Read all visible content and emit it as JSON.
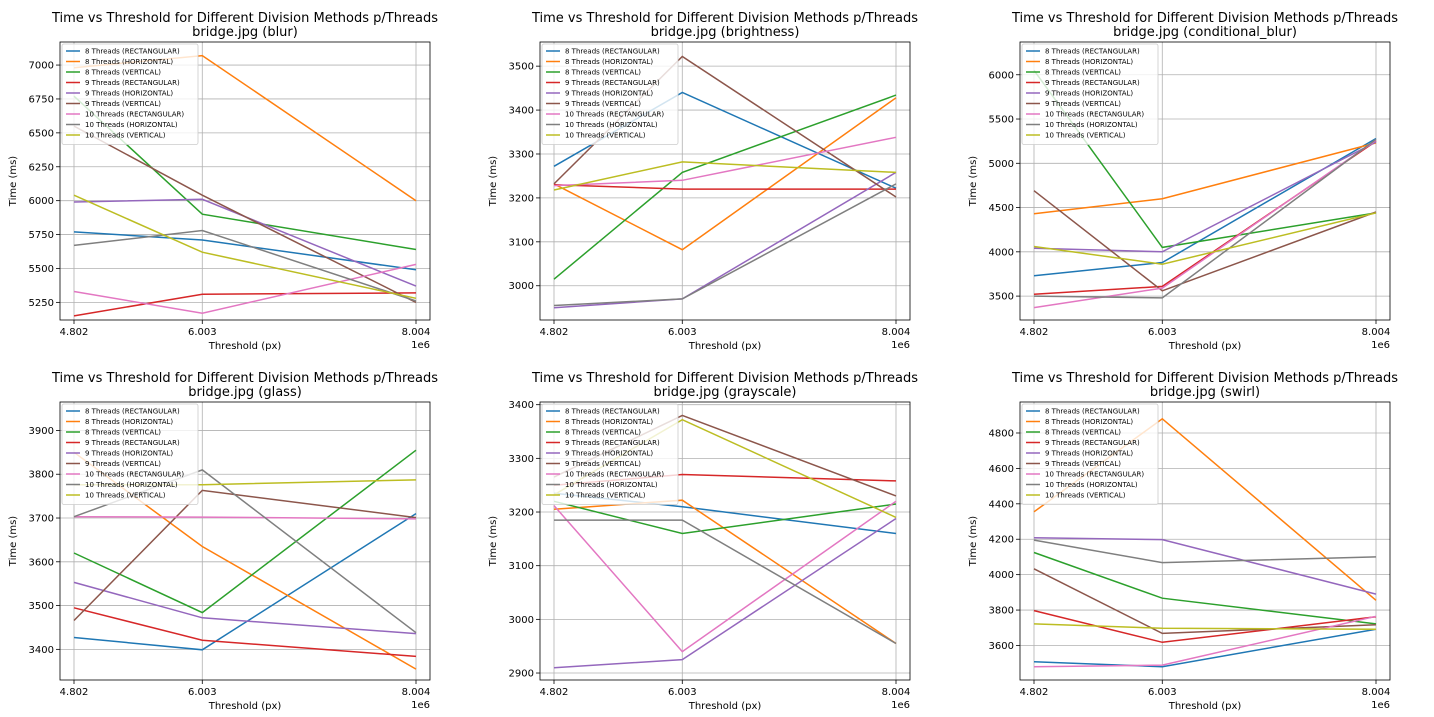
{
  "figure": {
    "x_offset_label": "1e6"
  },
  "series_colors": [
    "#1f77b4",
    "#ff7f0e",
    "#2ca02c",
    "#d62728",
    "#9467bd",
    "#8c564b",
    "#e377c2",
    "#7f7f7f",
    "#bcbd22"
  ],
  "chart_data": [
    {
      "type": "line",
      "title": "Time vs Threshold for Different Division Methods p/Threads",
      "subtitle": "bridge.jpg (blur)",
      "xlabel": "Threshold (px)",
      "ylabel": "Time (ms)",
      "x": [
        4.802,
        6.003,
        8.004
      ],
      "x_tick_labels": [
        "4.802",
        "6.003",
        "8.004"
      ],
      "x_offset": "1e6",
      "ylim": [
        5120,
        7170
      ],
      "y_ticks": [
        5250,
        5500,
        5750,
        6000,
        6250,
        6500,
        6750,
        7000
      ],
      "grid": true,
      "legend_position": "top-left",
      "series": [
        {
          "name": "8 Threads (RECTANGULAR)",
          "values": [
            5770,
            5710,
            5490
          ]
        },
        {
          "name": "8 Threads (HORIZONTAL)",
          "values": [
            6980,
            7070,
            6000
          ]
        },
        {
          "name": "8 Threads (VERTICAL)",
          "values": [
            6770,
            5900,
            5640
          ]
        },
        {
          "name": "9 Threads (RECTANGULAR)",
          "values": [
            5150,
            5310,
            5320
          ]
        },
        {
          "name": "9 Threads (HORIZONTAL)",
          "values": [
            5990,
            6010,
            5370
          ]
        },
        {
          "name": "9 Threads (VERTICAL)",
          "values": [
            6550,
            6040,
            5250
          ]
        },
        {
          "name": "10 Threads (RECTANGULAR)",
          "values": [
            5330,
            5170,
            5530
          ]
        },
        {
          "name": "10 Threads (HORIZONTAL)",
          "values": [
            5670,
            5780,
            5260
          ]
        },
        {
          "name": "10 Threads (VERTICAL)",
          "values": [
            6040,
            5620,
            5280
          ]
        }
      ]
    },
    {
      "type": "line",
      "title": "Time vs Threshold for Different Division Methods p/Threads",
      "subtitle": "bridge.jpg (brightness)",
      "xlabel": "Threshold (px)",
      "ylabel": "Time (ms)",
      "x": [
        4.802,
        6.003,
        8.004
      ],
      "x_tick_labels": [
        "4.802",
        "6.003",
        "8.004"
      ],
      "x_offset": "1e6",
      "ylim": [
        2922,
        3555
      ],
      "y_ticks": [
        3000,
        3100,
        3200,
        3300,
        3400,
        3500
      ],
      "grid": true,
      "legend_position": "top-left",
      "series": [
        {
          "name": "8 Threads (RECTANGULAR)",
          "values": [
            3272,
            3440,
            3222
          ]
        },
        {
          "name": "8 Threads (HORIZONTAL)",
          "values": [
            3232,
            3082,
            3428
          ]
        },
        {
          "name": "8 Threads (VERTICAL)",
          "values": [
            3015,
            3258,
            3434
          ]
        },
        {
          "name": "9 Threads (RECTANGULAR)",
          "values": [
            3230,
            3220,
            3220
          ]
        },
        {
          "name": "9 Threads (HORIZONTAL)",
          "values": [
            2950,
            2970,
            3258
          ]
        },
        {
          "name": "9 Threads (VERTICAL)",
          "values": [
            3232,
            3522,
            3202
          ]
        },
        {
          "name": "10 Threads (RECTANGULAR)",
          "values": [
            3228,
            3240,
            3338
          ]
        },
        {
          "name": "10 Threads (HORIZONTAL)",
          "values": [
            2955,
            2970,
            3232
          ]
        },
        {
          "name": "10 Threads (VERTICAL)",
          "values": [
            3218,
            3282,
            3258
          ]
        }
      ]
    },
    {
      "type": "line",
      "title": "Time vs Threshold for Different Division Methods p/Threads",
      "subtitle": "bridge.jpg (conditional_blur)",
      "xlabel": "Threshold (px)",
      "ylabel": "Time (ms)",
      "x": [
        4.802,
        6.003,
        8.004
      ],
      "x_tick_labels": [
        "4.802",
        "6.003",
        "8.004"
      ],
      "x_offset": "1e6",
      "ylim": [
        3230,
        6370
      ],
      "y_ticks": [
        3500,
        4000,
        4500,
        5000,
        5500,
        6000
      ],
      "grid": true,
      "legend_position": "top-left",
      "series": [
        {
          "name": "8 Threads (RECTANGULAR)",
          "values": [
            3730,
            3880,
            5280
          ]
        },
        {
          "name": "8 Threads (HORIZONTAL)",
          "values": [
            4430,
            4600,
            5230
          ]
        },
        {
          "name": "8 Threads (VERTICAL)",
          "values": [
            6050,
            4050,
            4440
          ]
        },
        {
          "name": "9 Threads (RECTANGULAR)",
          "values": [
            3520,
            3610,
            5250
          ]
        },
        {
          "name": "9 Threads (HORIZONTAL)",
          "values": [
            4040,
            4000,
            5240
          ]
        },
        {
          "name": "9 Threads (VERTICAL)",
          "values": [
            4690,
            3560,
            4450
          ]
        },
        {
          "name": "10 Threads (RECTANGULAR)",
          "values": [
            3370,
            3590,
            5260
          ]
        },
        {
          "name": "10 Threads (HORIZONTAL)",
          "values": [
            3500,
            3480,
            5270
          ]
        },
        {
          "name": "10 Threads (VERTICAL)",
          "values": [
            4060,
            3860,
            4440
          ]
        }
      ]
    },
    {
      "type": "line",
      "title": "Time vs Threshold for Different Division Methods p/Threads",
      "subtitle": "bridge.jpg (glass)",
      "xlabel": "Threshold (px)",
      "ylabel": "Time (ms)",
      "x": [
        4.802,
        6.003,
        8.004
      ],
      "x_tick_labels": [
        "4.802",
        "6.003",
        "8.004"
      ],
      "x_offset": "1e6",
      "ylim": [
        3330,
        3965
      ],
      "y_ticks": [
        3400,
        3500,
        3600,
        3700,
        3800,
        3900
      ],
      "grid": true,
      "legend_position": "top-left",
      "series": [
        {
          "name": "8 Threads (RECTANGULAR)",
          "values": [
            3427,
            3399,
            3710
          ]
        },
        {
          "name": "8 Threads (HORIZONTAL)",
          "values": [
            3850,
            3635,
            3355
          ]
        },
        {
          "name": "8 Threads (VERTICAL)",
          "values": [
            3620,
            3484,
            3855
          ]
        },
        {
          "name": "9 Threads (RECTANGULAR)",
          "values": [
            3495,
            3421,
            3384
          ]
        },
        {
          "name": "9 Threads (HORIZONTAL)",
          "values": [
            3553,
            3472,
            3436
          ]
        },
        {
          "name": "9 Threads (VERTICAL)",
          "values": [
            3466,
            3763,
            3701
          ]
        },
        {
          "name": "10 Threads (RECTANGULAR)",
          "values": [
            3703,
            3702,
            3698
          ]
        },
        {
          "name": "10 Threads (HORIZONTAL)",
          "values": [
            3703,
            3810,
            3438
          ]
        },
        {
          "name": "10 Threads (VERTICAL)",
          "values": [
            3776,
            3776,
            3787
          ]
        }
      ]
    },
    {
      "type": "line",
      "title": "Time vs Threshold for Different Division Methods p/Threads",
      "subtitle": "bridge.jpg (grayscale)",
      "xlabel": "Threshold (px)",
      "ylabel": "Time (ms)",
      "x": [
        4.802,
        6.003,
        8.004
      ],
      "x_tick_labels": [
        "4.802",
        "6.003",
        "8.004"
      ],
      "x_offset": "1e6",
      "ylim": [
        2887,
        3405
      ],
      "y_ticks": [
        2900,
        3000,
        3100,
        3200,
        3300,
        3400
      ],
      "grid": true,
      "legend_position": "top-left",
      "series": [
        {
          "name": "8 Threads (RECTANGULAR)",
          "values": [
            3235,
            3210,
            3160
          ]
        },
        {
          "name": "8 Threads (HORIZONTAL)",
          "values": [
            3205,
            3222,
            2955
          ]
        },
        {
          "name": "8 Threads (VERTICAL)",
          "values": [
            3220,
            3160,
            3215
          ]
        },
        {
          "name": "9 Threads (RECTANGULAR)",
          "values": [
            3250,
            3270,
            3258
          ]
        },
        {
          "name": "9 Threads (HORIZONTAL)",
          "values": [
            2910,
            2925,
            3188
          ]
        },
        {
          "name": "9 Threads (VERTICAL)",
          "values": [
            3265,
            3380,
            3230
          ]
        },
        {
          "name": "10 Threads (RECTANGULAR)",
          "values": [
            3212,
            2940,
            3220
          ]
        },
        {
          "name": "10 Threads (HORIZONTAL)",
          "values": [
            3185,
            3185,
            2955
          ]
        },
        {
          "name": "10 Threads (VERTICAL)",
          "values": [
            3232,
            3372,
            3190
          ]
        }
      ]
    },
    {
      "type": "line",
      "title": "Time vs Threshold for Different Division Methods p/Threads",
      "subtitle": "bridge.jpg (swirl)",
      "xlabel": "Threshold (px)",
      "ylabel": "Time (ms)",
      "x": [
        4.802,
        6.003,
        8.004
      ],
      "x_tick_labels": [
        "4.802",
        "6.003",
        "8.004"
      ],
      "x_offset": "1e6",
      "ylim": [
        3405,
        4975
      ],
      "y_ticks": [
        3600,
        3800,
        4000,
        4200,
        4400,
        4600,
        4800
      ],
      "grid": true,
      "legend_position": "top-left",
      "series": [
        {
          "name": "8 Threads (RECTANGULAR)",
          "values": [
            3508,
            3480,
            3692
          ]
        },
        {
          "name": "8 Threads (HORIZONTAL)",
          "values": [
            4355,
            4880,
            3855
          ]
        },
        {
          "name": "8 Threads (VERTICAL)",
          "values": [
            4125,
            3867,
            3722
          ]
        },
        {
          "name": "9 Threads (RECTANGULAR)",
          "values": [
            3797,
            3618,
            3762
          ]
        },
        {
          "name": "9 Threads (HORIZONTAL)",
          "values": [
            4208,
            4198,
            3890
          ]
        },
        {
          "name": "9 Threads (VERTICAL)",
          "values": [
            4033,
            3668,
            3717
          ]
        },
        {
          "name": "10 Threads (RECTANGULAR)",
          "values": [
            3480,
            3489,
            3765
          ]
        },
        {
          "name": "10 Threads (HORIZONTAL)",
          "values": [
            4195,
            4068,
            4100
          ]
        },
        {
          "name": "10 Threads (VERTICAL)",
          "values": [
            3722,
            3697,
            3692
          ]
        }
      ]
    }
  ]
}
